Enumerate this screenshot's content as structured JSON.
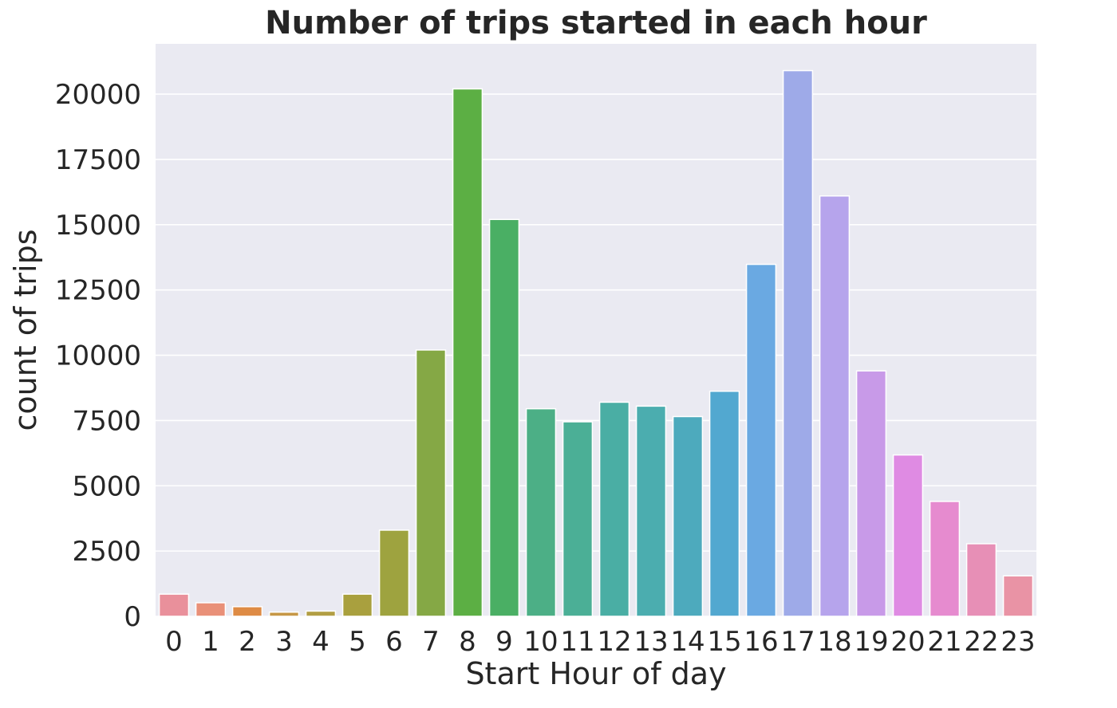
{
  "chart_data": {
    "type": "bar",
    "title": "Number of trips started in each hour",
    "xlabel": "Start Hour of day",
    "ylabel": "count of trips",
    "categories": [
      "0",
      "1",
      "2",
      "3",
      "4",
      "5",
      "6",
      "7",
      "8",
      "9",
      "10",
      "11",
      "12",
      "13",
      "14",
      "15",
      "16",
      "17",
      "18",
      "19",
      "20",
      "21",
      "22",
      "23"
    ],
    "values": [
      850,
      520,
      370,
      160,
      200,
      850,
      3300,
      10200,
      20200,
      15200,
      7950,
      7450,
      8200,
      8050,
      7650,
      8620,
      13480,
      20900,
      16100,
      9400,
      6180,
      4400,
      2780,
      1550
    ],
    "ylim": [
      0,
      21925
    ],
    "yticks": [
      0,
      2500,
      5000,
      7500,
      10000,
      12500,
      15000,
      17500,
      20000
    ],
    "grid": true,
    "legend": "none",
    "background": "#eaeaf2",
    "colors": [
      "#e9909b",
      "#e99078",
      "#de8b45",
      "#c69746",
      "#b29e44",
      "#a9a03e",
      "#9ea33f",
      "#85a845",
      "#5caf44",
      "#4aaf64",
      "#4caf86",
      "#4baf96",
      "#4aaea4",
      "#4badaf",
      "#4daabd",
      "#52a8d0",
      "#6aa9e2",
      "#9eaae8",
      "#b6a4ec",
      "#c89ae8",
      "#df8be3",
      "#e68bcf",
      "#e78fb6",
      "#e993a5"
    ]
  }
}
